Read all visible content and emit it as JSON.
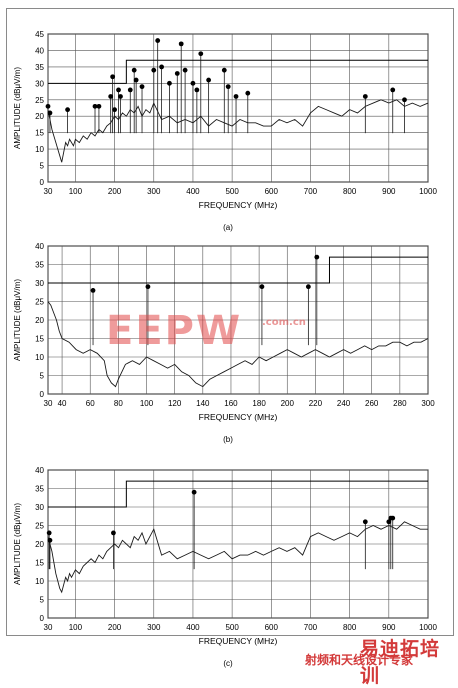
{
  "colors": {
    "plot_line": "#1a1a1a",
    "watermark": "#e34a4a"
  },
  "chart_data": [
    {
      "type": "line",
      "panel_label": "(a)",
      "xlabel": "FREQUENCY (MHz)",
      "ylabel": "AMPLITUDE (dBμV/m)",
      "xlim": [
        30,
        1000
      ],
      "ylim": [
        0,
        45
      ],
      "xticks": [
        30,
        100,
        200,
        300,
        400,
        500,
        600,
        700,
        800,
        900,
        1000
      ],
      "yticks": [
        0,
        5,
        10,
        15,
        20,
        25,
        30,
        35,
        40,
        45
      ],
      "grid": true,
      "limit_line": {
        "x": [
          30,
          230,
          230,
          1000
        ],
        "y": [
          30,
          30,
          37,
          37
        ]
      },
      "series": [
        {
          "x": [
            30,
            35,
            40,
            45,
            50,
            55,
            60,
            65,
            70,
            75,
            80,
            85,
            90,
            95,
            100,
            110,
            120,
            130,
            140,
            150,
            160,
            170,
            180,
            190,
            200,
            210,
            220,
            230,
            240,
            250,
            260,
            270,
            280,
            290,
            300,
            320,
            340,
            360,
            380,
            400,
            420,
            440,
            460,
            480,
            500,
            520,
            540,
            560,
            580,
            600,
            620,
            640,
            660,
            680,
            700,
            720,
            740,
            760,
            780,
            800,
            820,
            840,
            860,
            880,
            900,
            920,
            940,
            960,
            980,
            1000
          ],
          "y": [
            22,
            19,
            16,
            14,
            12,
            10,
            8,
            6,
            9,
            12,
            11,
            13,
            12,
            11,
            13,
            12,
            14,
            13,
            15,
            14,
            16,
            15,
            17,
            18,
            20,
            19,
            21,
            20,
            22,
            21,
            23,
            20,
            22,
            21,
            24,
            19,
            20,
            18,
            19,
            18,
            20,
            17,
            19,
            18,
            17,
            19,
            18,
            18,
            17,
            17,
            19,
            18,
            19,
            17,
            21,
            23,
            22,
            21,
            20,
            22,
            21,
            23,
            24,
            25,
            24,
            25,
            23,
            24,
            23,
            24
          ]
        }
      ],
      "peaks": {
        "x": [
          30,
          35,
          80,
          150,
          160,
          190,
          195,
          200,
          210,
          215,
          240,
          250,
          255,
          270,
          300,
          310,
          320,
          340,
          360,
          370,
          380,
          400,
          410,
          420,
          440,
          480,
          490,
          510,
          540,
          840,
          910,
          940
        ],
        "y": [
          23,
          21,
          22,
          23,
          23,
          26,
          32,
          22,
          28,
          26,
          28,
          34,
          31,
          29,
          34,
          43,
          35,
          30,
          33,
          42,
          34,
          30,
          28,
          39,
          31,
          34,
          29,
          26,
          27,
          26,
          28,
          25
        ]
      }
    },
    {
      "type": "line",
      "panel_label": "(b)",
      "xlabel": "FREQUENCY (MHz)",
      "ylabel": "AMPLITUDE (dBμV/m)",
      "xlim": [
        30,
        300
      ],
      "ylim": [
        0,
        40
      ],
      "xticks": [
        30,
        40,
        60,
        80,
        100,
        120,
        140,
        160,
        180,
        200,
        220,
        240,
        260,
        280,
        300
      ],
      "yticks": [
        0,
        5,
        10,
        15,
        20,
        25,
        30,
        35,
        40
      ],
      "grid": true,
      "limit_line": {
        "x": [
          30,
          230,
          230,
          300
        ],
        "y": [
          30,
          30,
          37,
          37
        ]
      },
      "series": [
        {
          "x": [
            30,
            32,
            34,
            36,
            38,
            40,
            45,
            50,
            55,
            60,
            65,
            70,
            72,
            75,
            78,
            80,
            85,
            90,
            95,
            100,
            105,
            110,
            115,
            120,
            125,
            130,
            135,
            140,
            145,
            150,
            155,
            160,
            165,
            170,
            175,
            180,
            185,
            190,
            195,
            200,
            205,
            210,
            215,
            220,
            225,
            230,
            235,
            240,
            245,
            250,
            255,
            260,
            265,
            270,
            275,
            280,
            285,
            290,
            295,
            300
          ],
          "y": [
            25,
            24,
            22,
            20,
            17,
            15,
            14,
            12,
            11,
            12,
            11,
            9,
            5,
            3,
            2,
            4,
            8,
            9,
            8,
            10,
            9,
            8,
            7,
            8,
            6,
            5,
            3,
            2,
            4,
            5,
            6,
            7,
            8,
            9,
            8,
            10,
            9,
            10,
            11,
            12,
            11,
            10,
            11,
            12,
            11,
            10,
            11,
            12,
            11,
            12,
            13,
            12,
            13,
            13,
            14,
            14,
            13,
            14,
            14,
            15
          ]
        }
      ],
      "peaks": {
        "x": [
          62,
          101,
          182,
          215,
          221
        ],
        "y": [
          28,
          29,
          29,
          29,
          37
        ]
      }
    },
    {
      "type": "line",
      "panel_label": "(c)",
      "xlabel": "FREQUENCY (MHz)",
      "ylabel": "AMPLITUDE (dBμV/m)",
      "xlim": [
        30,
        1000
      ],
      "ylim": [
        0,
        40
      ],
      "xticks": [
        30,
        100,
        200,
        300,
        400,
        500,
        600,
        700,
        800,
        900,
        1000
      ],
      "yticks": [
        0,
        5,
        10,
        15,
        20,
        25,
        30,
        35,
        40
      ],
      "grid": true,
      "limit_line": {
        "x": [
          30,
          230,
          230,
          1000
        ],
        "y": [
          30,
          30,
          37,
          37
        ]
      },
      "series": [
        {
          "x": [
            30,
            35,
            40,
            45,
            50,
            55,
            60,
            65,
            70,
            75,
            80,
            85,
            90,
            95,
            100,
            110,
            120,
            130,
            140,
            150,
            160,
            170,
            180,
            190,
            200,
            210,
            220,
            230,
            240,
            250,
            260,
            270,
            280,
            290,
            300,
            320,
            340,
            360,
            380,
            400,
            420,
            440,
            460,
            480,
            500,
            520,
            540,
            560,
            580,
            600,
            620,
            640,
            660,
            680,
            700,
            720,
            740,
            760,
            780,
            800,
            820,
            840,
            860,
            880,
            900,
            920,
            940,
            960,
            980,
            1000
          ],
          "y": [
            22,
            20,
            18,
            15,
            12,
            10,
            8,
            7,
            9,
            11,
            10,
            12,
            11,
            12,
            13,
            12,
            14,
            15,
            16,
            15,
            17,
            16,
            18,
            19,
            20,
            19,
            21,
            20,
            19,
            22,
            21,
            23,
            20,
            22,
            24,
            17,
            18,
            16,
            17,
            18,
            17,
            16,
            17,
            18,
            16,
            17,
            17,
            18,
            17,
            18,
            19,
            18,
            19,
            17,
            22,
            23,
            22,
            21,
            22,
            23,
            22,
            24,
            25,
            24,
            25,
            24,
            26,
            25,
            24,
            24
          ]
        }
      ],
      "peaks": {
        "x": [
          33,
          35,
          197,
          403,
          840,
          900,
          905,
          910
        ],
        "y": [
          23,
          21,
          23,
          34,
          26,
          26,
          27,
          27
        ]
      }
    }
  ]
}
